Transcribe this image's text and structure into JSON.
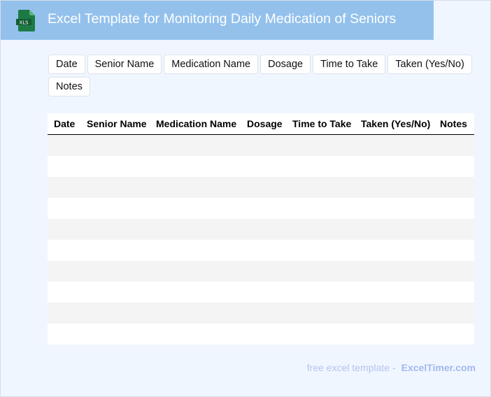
{
  "header": {
    "title": "Excel Template for Monitoring Daily Medication of Seniors",
    "icon": "xls-file-icon",
    "icon_label": "XLS",
    "banner_color": "#93c1ec"
  },
  "fields": [
    "Date",
    "Senior Name",
    "Medication Name",
    "Dosage",
    "Time to Take",
    "Taken (Yes/No)",
    "Notes"
  ],
  "table": {
    "columns": [
      "Date",
      "Senior Name",
      "Medication Name",
      "Dosage",
      "Time to Take",
      "Taken (Yes/No)",
      "Notes"
    ],
    "rows": [
      [
        "",
        "",
        "",
        "",
        "",
        "",
        ""
      ],
      [
        "",
        "",
        "",
        "",
        "",
        "",
        ""
      ],
      [
        "",
        "",
        "",
        "",
        "",
        "",
        ""
      ],
      [
        "",
        "",
        "",
        "",
        "",
        "",
        ""
      ],
      [
        "",
        "",
        "",
        "",
        "",
        "",
        ""
      ],
      [
        "",
        "",
        "",
        "",
        "",
        "",
        ""
      ],
      [
        "",
        "",
        "",
        "",
        "",
        "",
        ""
      ],
      [
        "",
        "",
        "",
        "",
        "",
        "",
        ""
      ],
      [
        "",
        "",
        "",
        "",
        "",
        "",
        ""
      ],
      [
        "",
        "",
        "",
        "",
        "",
        "",
        ""
      ]
    ]
  },
  "footer": {
    "text": "free excel template -",
    "link": "ExcelTimer.com"
  }
}
